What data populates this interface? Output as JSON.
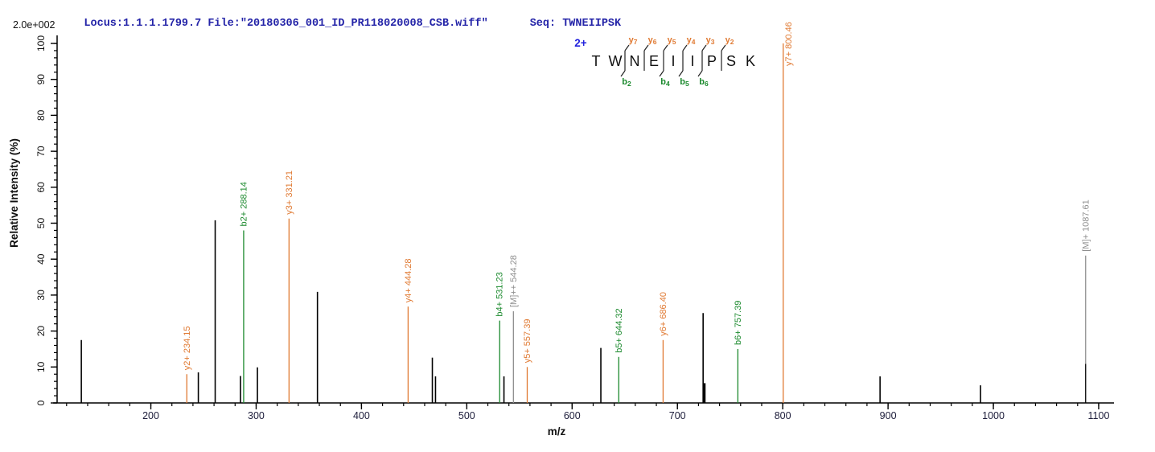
{
  "header": {
    "locus_file": "Locus:1.1.1.1799.7 File:\"20180306_001_ID_PR118020008_CSB.wiff\"",
    "seq_label": "Seq: TWNEIIPSK",
    "scale_label": "2.0e+002"
  },
  "precursor": {
    "charge_label": "2+",
    "sequence": [
      "T",
      "W",
      "N",
      "E",
      "I",
      "I",
      "P",
      "S",
      "K"
    ],
    "cleavages": [
      {
        "after_index": 1,
        "y_ion": "y7",
        "b_ion": "b2"
      },
      {
        "after_index": 2,
        "y_ion": "y6",
        "b_ion": null
      },
      {
        "after_index": 3,
        "y_ion": "y5",
        "b_ion": "b4"
      },
      {
        "after_index": 4,
        "y_ion": "y4",
        "b_ion": "b5"
      },
      {
        "after_index": 5,
        "y_ion": "y3",
        "b_ion": "b6"
      },
      {
        "after_index": 6,
        "y_ion": "y2",
        "b_ion": null
      }
    ]
  },
  "chart_data": {
    "type": "bar",
    "subtype": "centroid-mass-spectrum",
    "title": "",
    "xlabel": "m/z",
    "ylabel": "Relative  Intensity (%)",
    "xlim": [
      111,
      1113
    ],
    "ylim": [
      0,
      100
    ],
    "x_major_ticks": [
      200,
      300,
      400,
      500,
      600,
      700,
      800,
      900,
      1000,
      1100
    ],
    "x_minor_step": 20,
    "y_major_ticks": [
      0,
      10,
      20,
      30,
      40,
      50,
      60,
      70,
      80,
      90,
      100
    ],
    "y_minor_step": 2,
    "grid": false,
    "legend": false,
    "colors": {
      "unassigned": "#000000",
      "y": "#e07a33",
      "b": "#1c8a2e",
      "M": "#8f8f8f",
      "axis": "#000000",
      "tick_label": "#1c1c3a",
      "charge": "#2222dd"
    },
    "peaks": [
      {
        "mz": 134.0,
        "intensity": 17.5
      },
      {
        "mz": 234.15,
        "intensity": 8.0,
        "type": "y",
        "label": "y2+ 234.15"
      },
      {
        "mz": 245.1,
        "intensity": 8.5
      },
      {
        "mz": 261.1,
        "intensity": 50.8
      },
      {
        "mz": 285.1,
        "intensity": 7.5
      },
      {
        "mz": 288.14,
        "intensity": 48.0,
        "type": "b",
        "label": "b2+ 288.14"
      },
      {
        "mz": 301.2,
        "intensity": 9.9
      },
      {
        "mz": 331.21,
        "intensity": 51.3,
        "type": "y",
        "label": "y3+ 331.21"
      },
      {
        "mz": 358.2,
        "intensity": 30.9
      },
      {
        "mz": 444.28,
        "intensity": 26.8,
        "type": "y",
        "label": "y4+ 444.28"
      },
      {
        "mz": 467.3,
        "intensity": 12.6
      },
      {
        "mz": 470.3,
        "intensity": 7.4
      },
      {
        "mz": 531.23,
        "intensity": 22.9,
        "type": "b",
        "label": "b4+ 531.23"
      },
      {
        "mz": 535.3,
        "intensity": 7.4
      },
      {
        "mz": 544.28,
        "intensity": 0,
        "ref_line_to": 25.5,
        "type": "M",
        "label": "[M]++ 544.28"
      },
      {
        "mz": 557.39,
        "intensity": 10.0,
        "type": "y",
        "label": "y5+ 557.39"
      },
      {
        "mz": 627.3,
        "intensity": 15.3
      },
      {
        "mz": 644.32,
        "intensity": 12.8,
        "type": "b",
        "label": "b5+ 644.32"
      },
      {
        "mz": 686.4,
        "intensity": 17.5,
        "type": "y",
        "label": "y6+ 686.40"
      },
      {
        "mz": 724.4,
        "intensity": 25.0
      },
      {
        "mz": 725.6,
        "intensity": 5.5,
        "w": 3
      },
      {
        "mz": 757.39,
        "intensity": 15.0,
        "type": "b",
        "label": "b6+ 757.39"
      },
      {
        "mz": 800.46,
        "intensity": 100.0,
        "type": "y",
        "label": "y7+ 800.46"
      },
      {
        "mz": 892.4,
        "intensity": 7.4
      },
      {
        "mz": 987.8,
        "intensity": 4.9
      },
      {
        "mz": 1087.61,
        "intensity": 10.9,
        "ref_line_to": 41.0,
        "type": "M",
        "label": "[M]+ 1087.61"
      }
    ]
  }
}
